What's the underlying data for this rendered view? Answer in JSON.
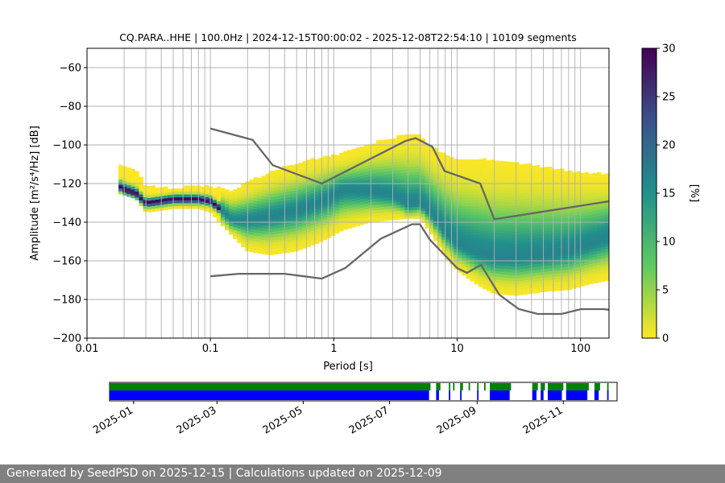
{
  "footer": {
    "generated_text": "Generated by SeedPSD on 2025-12-15 | Calculations updated on 2025-12-09"
  },
  "chart_data": [
    {
      "type": "heatmap",
      "title": "CQ.PARA..HHE | 100.0Hz | 2024-12-15T00:00:02 - 2025-12-08T22:54:10 | 10109 segments",
      "xlabel": "Period [s]",
      "ylabel": "Amplitude [m²/s⁴/Hz] [dB]",
      "x_scale": "log",
      "xlim": [
        0.01,
        170
      ],
      "ylim": [
        -200,
        -50
      ],
      "x_ticks": [
        {
          "value": 0.01,
          "label": "0.01"
        },
        {
          "value": 0.1,
          "label": "0.1"
        },
        {
          "value": 1,
          "label": "1"
        },
        {
          "value": 10,
          "label": "10"
        },
        {
          "value": 100,
          "label": "100"
        }
      ],
      "y_ticks": [
        {
          "value": -60,
          "label": "−60"
        },
        {
          "value": -80,
          "label": "−80"
        },
        {
          "value": -100,
          "label": "−100"
        },
        {
          "value": -120,
          "label": "−120"
        },
        {
          "value": -140,
          "label": "−140"
        },
        {
          "value": -160,
          "label": "−160"
        },
        {
          "value": -180,
          "label": "−180"
        },
        {
          "value": -200,
          "label": "−200"
        }
      ],
      "grid": true,
      "colorbar": {
        "label": "[%]",
        "range": [
          0,
          30
        ],
        "ticks": [
          {
            "value": 0,
            "label": "0"
          },
          {
            "value": 5,
            "label": "5"
          },
          {
            "value": 10,
            "label": "10"
          },
          {
            "value": 15,
            "label": "15"
          },
          {
            "value": 20,
            "label": "20"
          },
          {
            "value": 25,
            "label": "25"
          },
          {
            "value": 30,
            "label": "30"
          }
        ],
        "colormap": "viridis_r"
      },
      "mode_line": {
        "x": [
          0.018,
          0.02,
          0.025,
          0.03,
          0.04,
          0.05,
          0.06,
          0.08,
          0.1,
          0.12,
          0.15,
          0.2,
          0.3,
          0.5,
          0.8,
          1.2,
          2,
          3,
          4,
          5,
          6,
          8,
          10,
          15,
          20,
          30,
          50,
          80,
          120,
          170
        ],
        "y": [
          -121,
          -123,
          -125,
          -130,
          -129,
          -128,
          -128,
          -128,
          -129,
          -133,
          -139,
          -139,
          -137,
          -134,
          -129,
          -123,
          -124,
          -126,
          -131,
          -130,
          -135,
          -145,
          -151,
          -156,
          -158,
          -158,
          -157,
          -155,
          -151,
          -147
        ]
      },
      "spread_upper": {
        "x": [
          0.018,
          0.025,
          0.03,
          0.05,
          0.08,
          0.1,
          0.15,
          0.2,
          0.3,
          0.5,
          0.8,
          1.2,
          2,
          4,
          5,
          6,
          8,
          10,
          15,
          20,
          30,
          50,
          80,
          120,
          170
        ],
        "y": [
          -110,
          -114,
          -122,
          -123,
          -122,
          -122,
          -124,
          -120,
          -115,
          -110,
          -107,
          -105,
          -100,
          -95,
          -96,
          -101,
          -106,
          -108,
          -108,
          -109,
          -110,
          -112,
          -114,
          -115,
          -116
        ]
      },
      "spread_lower": {
        "x": [
          0.018,
          0.025,
          0.03,
          0.05,
          0.08,
          0.1,
          0.15,
          0.2,
          0.3,
          0.5,
          0.8,
          1.2,
          2,
          4,
          5,
          6,
          8,
          10,
          15,
          20,
          30,
          50,
          80,
          120,
          170
        ],
        "y": [
          -125,
          -128,
          -135,
          -133,
          -133,
          -135,
          -147,
          -155,
          -157,
          -155,
          -150,
          -144,
          -140,
          -138,
          -138,
          -145,
          -158,
          -165,
          -173,
          -177,
          -178,
          -176,
          -175,
          -172,
          -170
        ]
      },
      "series": [
        {
          "style": "noise-model-high",
          "color": "#666666",
          "x": [
            0.1,
            0.22,
            0.32,
            0.8,
            3.8,
            4.6,
            6.3,
            7.9,
            15.4,
            20,
            354.8
          ],
          "y": [
            -91.5,
            -97.4,
            -110.5,
            -120.0,
            -98.0,
            -96.5,
            -101.0,
            -113.5,
            -120.0,
            -138.5,
            -126.0
          ]
        },
        {
          "style": "noise-model-low",
          "color": "#666666",
          "x": [
            0.1,
            0.17,
            0.4,
            0.8,
            1.24,
            2.4,
            4.3,
            5.0,
            6.0,
            10.0,
            12.0,
            15.6,
            21.9,
            31.6,
            45.0,
            70.0,
            101.0,
            154.0,
            328.0
          ],
          "y": [
            -168.0,
            -166.7,
            -166.7,
            -169.2,
            -163.7,
            -148.6,
            -141.1,
            -141.1,
            -149.0,
            -163.8,
            -166.2,
            -162.1,
            -177.5,
            -185.0,
            -187.5,
            -187.5,
            -185.0,
            -185.0,
            -187.5
          ]
        }
      ],
      "period_gridlines": [
        0.02,
        0.03,
        0.04,
        0.05,
        0.06,
        0.07,
        0.08,
        0.09,
        0.2,
        0.3,
        0.4,
        0.5,
        0.6,
        0.7,
        0.8,
        0.9,
        2,
        3,
        4,
        5,
        6,
        7,
        8,
        9,
        20,
        30,
        40,
        50,
        60,
        70,
        80,
        90
      ]
    },
    {
      "type": "timeline",
      "xlim": [
        "2024-12-15",
        "2025-12-09"
      ],
      "x_ticks": [
        {
          "value": "2025-01-01",
          "label": "2025-01"
        },
        {
          "value": "2025-03-01",
          "label": "2025-03"
        },
        {
          "value": "2025-05-01",
          "label": "2025-05"
        },
        {
          "value": "2025-07-01",
          "label": "2025-07"
        },
        {
          "value": "2025-09-01",
          "label": "2025-09"
        },
        {
          "value": "2025-11-01",
          "label": "2025-11"
        }
      ],
      "series": [
        {
          "color": "#008000",
          "track": "upper",
          "intervals": [
            [
              "2024-12-15",
              "2025-07-30"
            ],
            [
              "2025-08-03",
              "2025-08-06"
            ],
            [
              "2025-08-12",
              "2025-08-13"
            ],
            [
              "2025-08-15",
              "2025-08-16"
            ],
            [
              "2025-08-20",
              "2025-08-22"
            ],
            [
              "2025-08-26",
              "2025-08-27"
            ],
            [
              "2025-09-01",
              "2025-09-02"
            ],
            [
              "2025-09-06",
              "2025-09-07"
            ],
            [
              "2025-09-10",
              "2025-09-25"
            ],
            [
              "2025-10-10",
              "2025-10-14"
            ],
            [
              "2025-10-16",
              "2025-10-19"
            ],
            [
              "2025-10-21",
              "2025-11-01"
            ],
            [
              "2025-11-03",
              "2025-11-19"
            ],
            [
              "2025-11-23",
              "2025-11-27"
            ],
            [
              "2025-12-02",
              "2025-12-03"
            ]
          ]
        },
        {
          "color": "#0000ff",
          "track": "lower",
          "intervals": [
            [
              "2024-12-15",
              "2025-07-29"
            ],
            [
              "2025-08-03",
              "2025-08-05"
            ],
            [
              "2025-08-12",
              "2025-08-13"
            ],
            [
              "2025-08-20",
              "2025-08-21"
            ],
            [
              "2025-09-01",
              "2025-09-02"
            ],
            [
              "2025-09-10",
              "2025-09-24"
            ],
            [
              "2025-10-10",
              "2025-10-13"
            ],
            [
              "2025-10-16",
              "2025-10-18"
            ],
            [
              "2025-10-21",
              "2025-10-31"
            ],
            [
              "2025-11-03",
              "2025-11-18"
            ],
            [
              "2025-11-23",
              "2025-11-26"
            ],
            [
              "2025-12-02",
              "2025-12-03"
            ]
          ]
        }
      ]
    }
  ]
}
